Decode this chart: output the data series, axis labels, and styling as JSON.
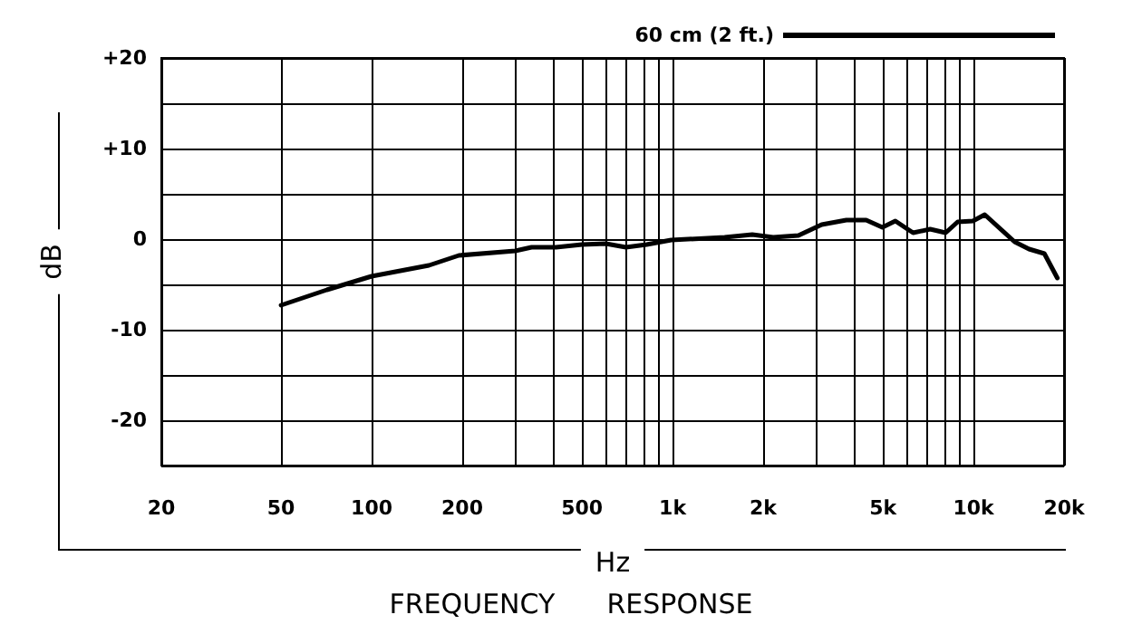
{
  "chart_data": {
    "type": "line",
    "title": "FREQUENCY      RESPONSE",
    "xlabel": "Hz",
    "ylabel": "dB",
    "log": "x",
    "grid": true,
    "legend": "top right",
    "marker": "none",
    "line_style": "solid",
    "xlim": [
      20,
      20000
    ],
    "xticks": [
      20,
      50,
      100,
      200,
      {
        "value": 300,
        "label": null
      },
      {
        "value": 400,
        "label": null
      },
      500,
      {
        "value": 600,
        "label": null
      },
      {
        "value": 700,
        "label": null
      },
      {
        "value": 800,
        "label": null
      },
      {
        "value": 900,
        "label": null
      },
      {
        "value": 1000,
        "label": "1k"
      },
      {
        "value": 2000,
        "label": "2k"
      },
      {
        "value": 3000,
        "label": null
      },
      {
        "value": 4000,
        "label": null
      },
      {
        "value": 5000,
        "label": "5k"
      },
      {
        "value": 6000,
        "label": null
      },
      {
        "value": 7000,
        "label": null
      },
      {
        "value": 8000,
        "label": null
      },
      {
        "value": 9000,
        "label": null
      },
      {
        "value": 10000,
        "label": "10k"
      },
      {
        "value": 20000,
        "label": "20k"
      }
    ],
    "ylim": [
      -25,
      20
    ],
    "yticks": [
      {
        "value": -25,
        "label": null
      },
      -20,
      {
        "value": -15,
        "label": null
      },
      -10,
      {
        "value": -5,
        "label": null
      },
      0,
      {
        "value": 5,
        "label": null
      },
      {
        "value": 10,
        "label": "+10"
      },
      {
        "value": 15,
        "label": null
      },
      {
        "value": 20,
        "label": "+20"
      }
    ],
    "series": [
      {
        "name": "60 cm (2 ft.)",
        "color": "#000000",
        "x": [
          50,
          71,
          100,
          155,
          195,
          300,
          340,
          410,
          500,
          600,
          700,
          820,
          990,
          1490,
          1840,
          2160,
          2620,
          3130,
          3780,
          4400,
          4980,
          5500,
          6300,
          7180,
          8080,
          8860,
          9960,
          10900,
          13700,
          15300,
          17200,
          19000
        ],
        "values": [
          -7.3,
          -5.6,
          -4.1,
          -2.9,
          -1.8,
          -1.3,
          -0.9,
          -0.9,
          -0.6,
          -0.5,
          -0.9,
          -0.6,
          -0.1,
          0.2,
          0.5,
          0.2,
          0.4,
          1.6,
          2.1,
          2.1,
          1.3,
          2.0,
          0.7,
          1.1,
          0.7,
          1.9,
          2.0,
          2.7,
          -0.3,
          -1.1,
          -1.6,
          -4.3
        ]
      }
    ]
  }
}
